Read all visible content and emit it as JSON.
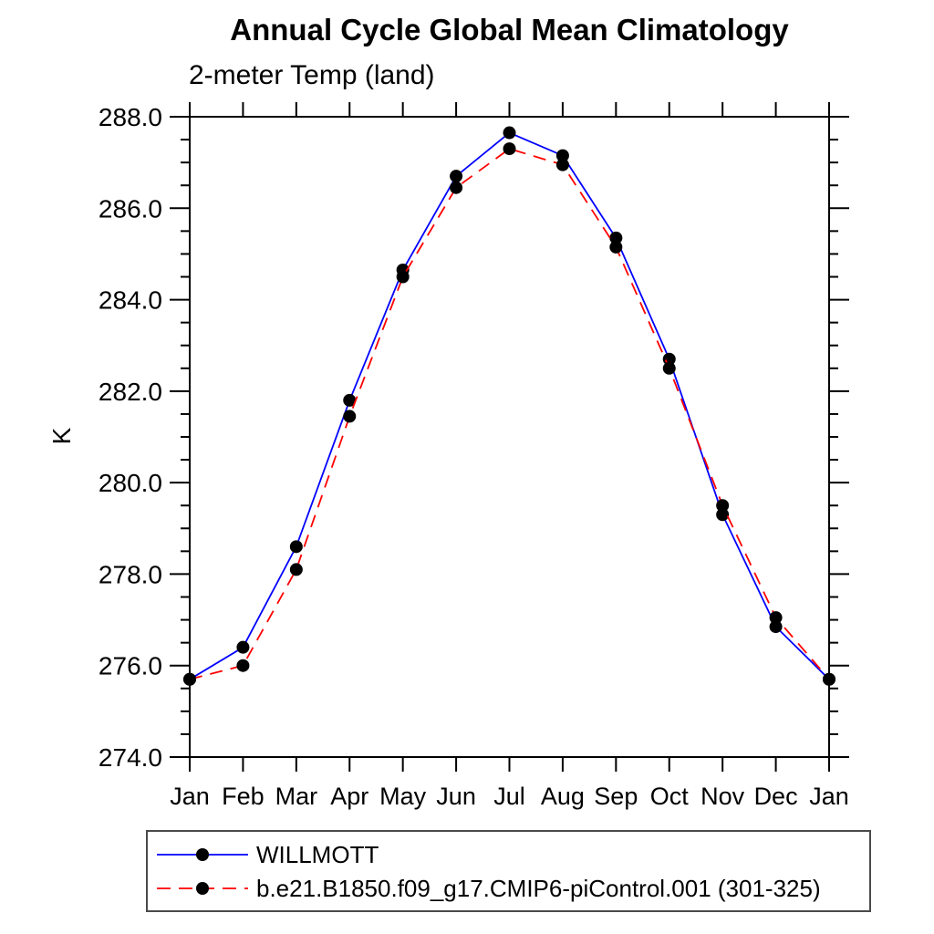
{
  "header": {
    "title": "Annual Cycle Global Mean Climatology",
    "subtitle": "2-meter Temp (land)"
  },
  "chart_data": {
    "type": "line",
    "title": "Annual Cycle Global Mean Climatology",
    "subtitle": "2-meter Temp (land)",
    "xlabel": "",
    "ylabel": "K",
    "categories": [
      "Jan",
      "Feb",
      "Mar",
      "Apr",
      "May",
      "Jun",
      "Jul",
      "Aug",
      "Sep",
      "Oct",
      "Nov",
      "Dec",
      "Jan"
    ],
    "ylim": [
      274.0,
      288.0
    ],
    "ytick_major_step": 2.0,
    "ytick_minor_step": 0.5,
    "ytick_labels": [
      "274.0",
      "276.0",
      "278.0",
      "280.0",
      "282.0",
      "284.0",
      "286.0",
      "288.0"
    ],
    "grid": false,
    "legend_position": "bottom-left",
    "series": [
      {
        "name": "WILLMOTT",
        "color": "#0000ff",
        "line_style": "solid",
        "marker": "filled-circle",
        "marker_color": "#000000",
        "values": [
          275.7,
          276.4,
          278.6,
          281.8,
          284.65,
          286.7,
          287.65,
          287.15,
          285.35,
          282.7,
          279.3,
          276.85,
          275.7
        ]
      },
      {
        "name": "b.e21.B1850.f09_g17.CMIP6-piControl.001 (301-325)",
        "color": "#ff0000",
        "line_style": "dashed",
        "marker": "filled-circle",
        "marker_color": "#000000",
        "values": [
          275.7,
          276.0,
          278.1,
          281.45,
          284.5,
          286.45,
          287.3,
          286.95,
          285.15,
          282.5,
          279.5,
          277.05,
          275.7
        ]
      }
    ]
  },
  "colors": {
    "axis": "#000000",
    "series_1": "#0000ff",
    "series_2": "#ff0000",
    "marker": "#000000",
    "legend_border": "#4a4a4a"
  }
}
